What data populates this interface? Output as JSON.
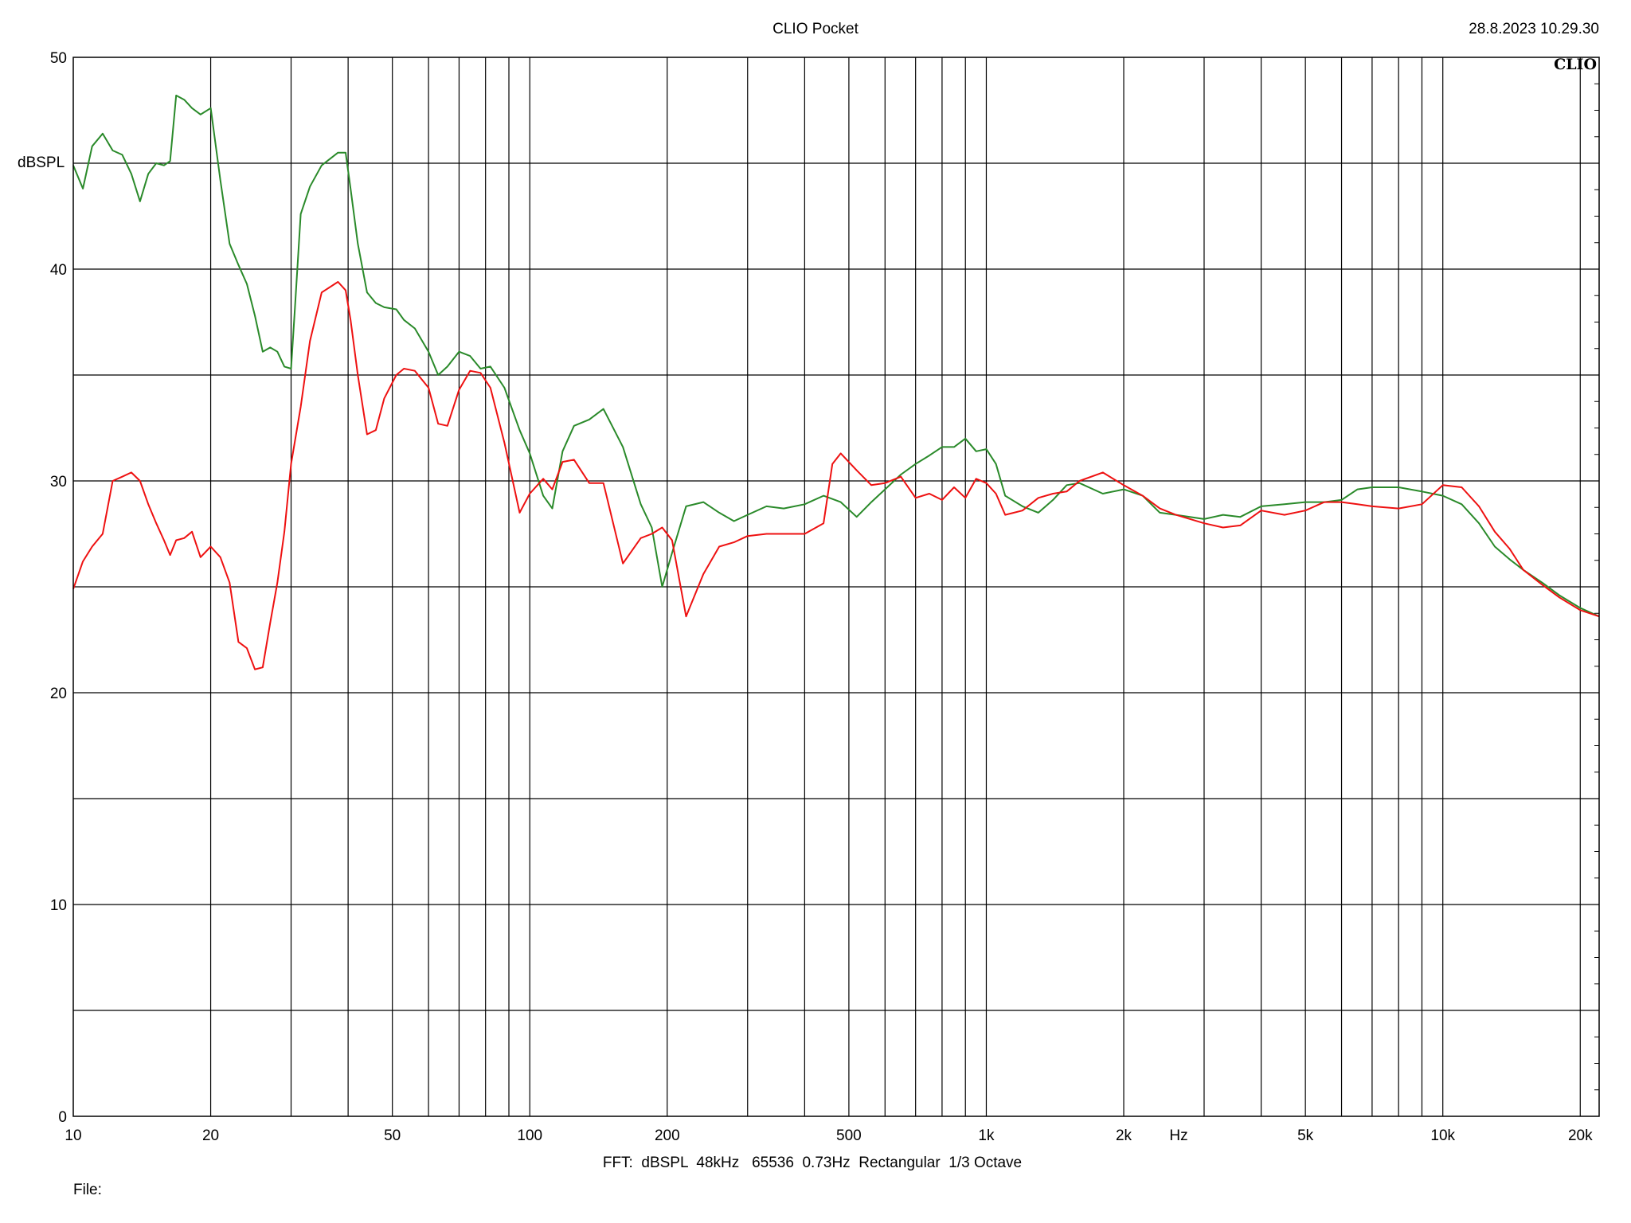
{
  "header": {
    "title": "CLIO Pocket",
    "timestamp": "28.8.2023 10.29.30",
    "logo": "CLIO"
  },
  "footer": {
    "settings": "FFT:  dBSPL  48kHz   65536  0.73Hz  Rectangular  1/3 Octave",
    "file_label": "File:"
  },
  "chart_data": {
    "type": "line",
    "ylabel": "dBSPL",
    "xlabel": "Hz",
    "x_scale": "log",
    "xlim": [
      10,
      22000
    ],
    "ylim": [
      0,
      50
    ],
    "grid": true,
    "x_major_ticks": [
      10,
      20,
      30,
      40,
      50,
      60,
      70,
      80,
      90,
      100,
      200,
      300,
      400,
      500,
      600,
      700,
      800,
      900,
      1000,
      2000,
      3000,
      4000,
      5000,
      6000,
      7000,
      8000,
      9000,
      10000,
      20000
    ],
    "x_tick_labels": [
      {
        "value": 10,
        "label": "10"
      },
      {
        "value": 20,
        "label": "20"
      },
      {
        "value": 50,
        "label": "50"
      },
      {
        "value": 100,
        "label": "100"
      },
      {
        "value": 200,
        "label": "200"
      },
      {
        "value": 500,
        "label": "500"
      },
      {
        "value": 1000,
        "label": "1k"
      },
      {
        "value": 2000,
        "label": "2k"
      },
      {
        "value": 5000,
        "label": "5k"
      },
      {
        "value": 10000,
        "label": "10k"
      },
      {
        "value": 20000,
        "label": "20k"
      }
    ],
    "y_gridlines": [
      0,
      5,
      10,
      15,
      20,
      25,
      30,
      35,
      40,
      45,
      50
    ],
    "y_tick_labels": [
      {
        "value": 0,
        "label": "0"
      },
      {
        "value": 10,
        "label": "10"
      },
      {
        "value": 20,
        "label": "20"
      },
      {
        "value": 30,
        "label": "30"
      },
      {
        "value": 40,
        "label": "40"
      },
      {
        "value": 50,
        "label": "50"
      }
    ],
    "series": [
      {
        "color": "#2a8a2a",
        "points": [
          [
            10,
            44.9
          ],
          [
            10.5,
            43.8
          ],
          [
            11,
            45.8
          ],
          [
            11.6,
            46.4
          ],
          [
            12.2,
            45.6
          ],
          [
            12.8,
            45.4
          ],
          [
            13.4,
            44.5
          ],
          [
            14,
            43.2
          ],
          [
            14.6,
            44.5
          ],
          [
            15.2,
            45
          ],
          [
            15.8,
            44.9
          ],
          [
            16.3,
            45.1
          ],
          [
            16.8,
            48.2
          ],
          [
            17.5,
            48
          ],
          [
            18.2,
            47.6
          ],
          [
            19,
            47.3
          ],
          [
            20,
            47.6
          ],
          [
            21,
            44.2
          ],
          [
            22,
            41.2
          ],
          [
            23,
            40.2
          ],
          [
            24,
            39.3
          ],
          [
            25,
            37.8
          ],
          [
            26,
            36.1
          ],
          [
            27,
            36.3
          ],
          [
            28,
            36.1
          ],
          [
            29,
            35.4
          ],
          [
            30,
            35.3
          ],
          [
            30.6,
            38.2
          ],
          [
            31.5,
            42.6
          ],
          [
            33,
            43.9
          ],
          [
            35,
            44.9
          ],
          [
            38,
            45.5
          ],
          [
            39.5,
            45.5
          ],
          [
            40.5,
            43.8
          ],
          [
            42,
            41.2
          ],
          [
            44,
            38.9
          ],
          [
            46,
            38.4
          ],
          [
            48,
            38.2
          ],
          [
            51,
            38.1
          ],
          [
            53,
            37.6
          ],
          [
            56,
            37.2
          ],
          [
            60,
            36.1
          ],
          [
            63,
            35
          ],
          [
            66,
            35.4
          ],
          [
            70,
            36.1
          ],
          [
            74,
            35.9
          ],
          [
            78,
            35.3
          ],
          [
            82,
            35.4
          ],
          [
            88,
            34.4
          ],
          [
            95,
            32.4
          ],
          [
            100,
            31.3
          ],
          [
            107,
            29.3
          ],
          [
            112,
            28.7
          ],
          [
            118,
            31.4
          ],
          [
            125,
            32.6
          ],
          [
            135,
            32.9
          ],
          [
            145,
            33.4
          ],
          [
            160,
            31.6
          ],
          [
            175,
            28.9
          ],
          [
            185,
            27.8
          ],
          [
            195,
            25
          ],
          [
            205,
            26.6
          ],
          [
            220,
            28.8
          ],
          [
            240,
            29
          ],
          [
            260,
            28.5
          ],
          [
            280,
            28.1
          ],
          [
            300,
            28.4
          ],
          [
            330,
            28.8
          ],
          [
            360,
            28.7
          ],
          [
            400,
            28.9
          ],
          [
            440,
            29.3
          ],
          [
            480,
            29
          ],
          [
            520,
            28.3
          ],
          [
            560,
            29
          ],
          [
            600,
            29.6
          ],
          [
            650,
            30.3
          ],
          [
            700,
            30.8
          ],
          [
            750,
            31.2
          ],
          [
            800,
            31.6
          ],
          [
            850,
            31.6
          ],
          [
            900,
            32
          ],
          [
            950,
            31.4
          ],
          [
            1000,
            31.5
          ],
          [
            1050,
            30.8
          ],
          [
            1100,
            29.3
          ],
          [
            1200,
            28.8
          ],
          [
            1300,
            28.5
          ],
          [
            1400,
            29.1
          ],
          [
            1500,
            29.8
          ],
          [
            1600,
            29.9
          ],
          [
            1800,
            29.4
          ],
          [
            2000,
            29.6
          ],
          [
            2200,
            29.3
          ],
          [
            2400,
            28.5
          ],
          [
            2600,
            28.4
          ],
          [
            3000,
            28.2
          ],
          [
            3300,
            28.4
          ],
          [
            3600,
            28.3
          ],
          [
            4000,
            28.8
          ],
          [
            4500,
            28.9
          ],
          [
            5000,
            29
          ],
          [
            5500,
            29
          ],
          [
            6000,
            29.1
          ],
          [
            6500,
            29.6
          ],
          [
            7000,
            29.7
          ],
          [
            8000,
            29.7
          ],
          [
            9000,
            29.5
          ],
          [
            10000,
            29.3
          ],
          [
            11000,
            28.9
          ],
          [
            12000,
            28
          ],
          [
            13000,
            26.9
          ],
          [
            14000,
            26.3
          ],
          [
            15000,
            25.8
          ],
          [
            16500,
            25.2
          ],
          [
            18000,
            24.6
          ],
          [
            20000,
            24
          ],
          [
            22000,
            23.6
          ]
        ]
      },
      {
        "color": "#ee1111",
        "points": [
          [
            10,
            24.9
          ],
          [
            10.5,
            26.2
          ],
          [
            11,
            26.9
          ],
          [
            11.6,
            27.5
          ],
          [
            12.2,
            30
          ],
          [
            12.8,
            30.2
          ],
          [
            13.4,
            30.4
          ],
          [
            14,
            30
          ],
          [
            14.6,
            28.9
          ],
          [
            15.2,
            28
          ],
          [
            15.8,
            27.2
          ],
          [
            16.3,
            26.5
          ],
          [
            16.8,
            27.2
          ],
          [
            17.5,
            27.3
          ],
          [
            18.2,
            27.6
          ],
          [
            19,
            26.4
          ],
          [
            20,
            26.9
          ],
          [
            21,
            26.4
          ],
          [
            22,
            25.2
          ],
          [
            23,
            22.4
          ],
          [
            24,
            22.1
          ],
          [
            25,
            21.1
          ],
          [
            26,
            21.2
          ],
          [
            27,
            23.3
          ],
          [
            28,
            25.2
          ],
          [
            29,
            27.6
          ],
          [
            30,
            30.8
          ],
          [
            31.5,
            33.5
          ],
          [
            33,
            36.6
          ],
          [
            35,
            38.9
          ],
          [
            38,
            39.4
          ],
          [
            39.5,
            39
          ],
          [
            40.5,
            37.6
          ],
          [
            42,
            35
          ],
          [
            44,
            32.2
          ],
          [
            46,
            32.4
          ],
          [
            48,
            33.9
          ],
          [
            51,
            35
          ],
          [
            53,
            35.3
          ],
          [
            56,
            35.2
          ],
          [
            60,
            34.4
          ],
          [
            63,
            32.7
          ],
          [
            66,
            32.6
          ],
          [
            70,
            34.3
          ],
          [
            74,
            35.2
          ],
          [
            78,
            35.1
          ],
          [
            82,
            34.4
          ],
          [
            88,
            31.8
          ],
          [
            95,
            28.5
          ],
          [
            100,
            29.4
          ],
          [
            107,
            30.1
          ],
          [
            112,
            29.6
          ],
          [
            118,
            30.9
          ],
          [
            125,
            31
          ],
          [
            135,
            29.9
          ],
          [
            145,
            29.9
          ],
          [
            160,
            26.1
          ],
          [
            175,
            27.3
          ],
          [
            185,
            27.5
          ],
          [
            195,
            27.8
          ],
          [
            205,
            27.2
          ],
          [
            220,
            23.6
          ],
          [
            240,
            25.6
          ],
          [
            260,
            26.9
          ],
          [
            280,
            27.1
          ],
          [
            300,
            27.4
          ],
          [
            330,
            27.5
          ],
          [
            360,
            27.5
          ],
          [
            400,
            27.5
          ],
          [
            440,
            28
          ],
          [
            460,
            30.8
          ],
          [
            480,
            31.3
          ],
          [
            520,
            30.5
          ],
          [
            560,
            29.8
          ],
          [
            600,
            29.9
          ],
          [
            650,
            30.2
          ],
          [
            700,
            29.2
          ],
          [
            750,
            29.4
          ],
          [
            800,
            29.1
          ],
          [
            850,
            29.7
          ],
          [
            900,
            29.2
          ],
          [
            950,
            30.1
          ],
          [
            1000,
            29.9
          ],
          [
            1050,
            29.4
          ],
          [
            1100,
            28.4
          ],
          [
            1200,
            28.6
          ],
          [
            1300,
            29.2
          ],
          [
            1400,
            29.4
          ],
          [
            1500,
            29.5
          ],
          [
            1600,
            30
          ],
          [
            1800,
            30.4
          ],
          [
            2000,
            29.8
          ],
          [
            2200,
            29.3
          ],
          [
            2400,
            28.7
          ],
          [
            2600,
            28.4
          ],
          [
            3000,
            28
          ],
          [
            3300,
            27.8
          ],
          [
            3600,
            27.9
          ],
          [
            4000,
            28.6
          ],
          [
            4500,
            28.4
          ],
          [
            5000,
            28.6
          ],
          [
            5500,
            29
          ],
          [
            6000,
            29
          ],
          [
            6500,
            28.9
          ],
          [
            7000,
            28.8
          ],
          [
            8000,
            28.7
          ],
          [
            9000,
            28.9
          ],
          [
            10000,
            29.8
          ],
          [
            11000,
            29.7
          ],
          [
            12000,
            28.8
          ],
          [
            13000,
            27.6
          ],
          [
            14000,
            26.8
          ],
          [
            15000,
            25.8
          ],
          [
            16500,
            25.1
          ],
          [
            18000,
            24.5
          ],
          [
            20000,
            23.9
          ],
          [
            22000,
            23.6
          ]
        ]
      }
    ]
  }
}
